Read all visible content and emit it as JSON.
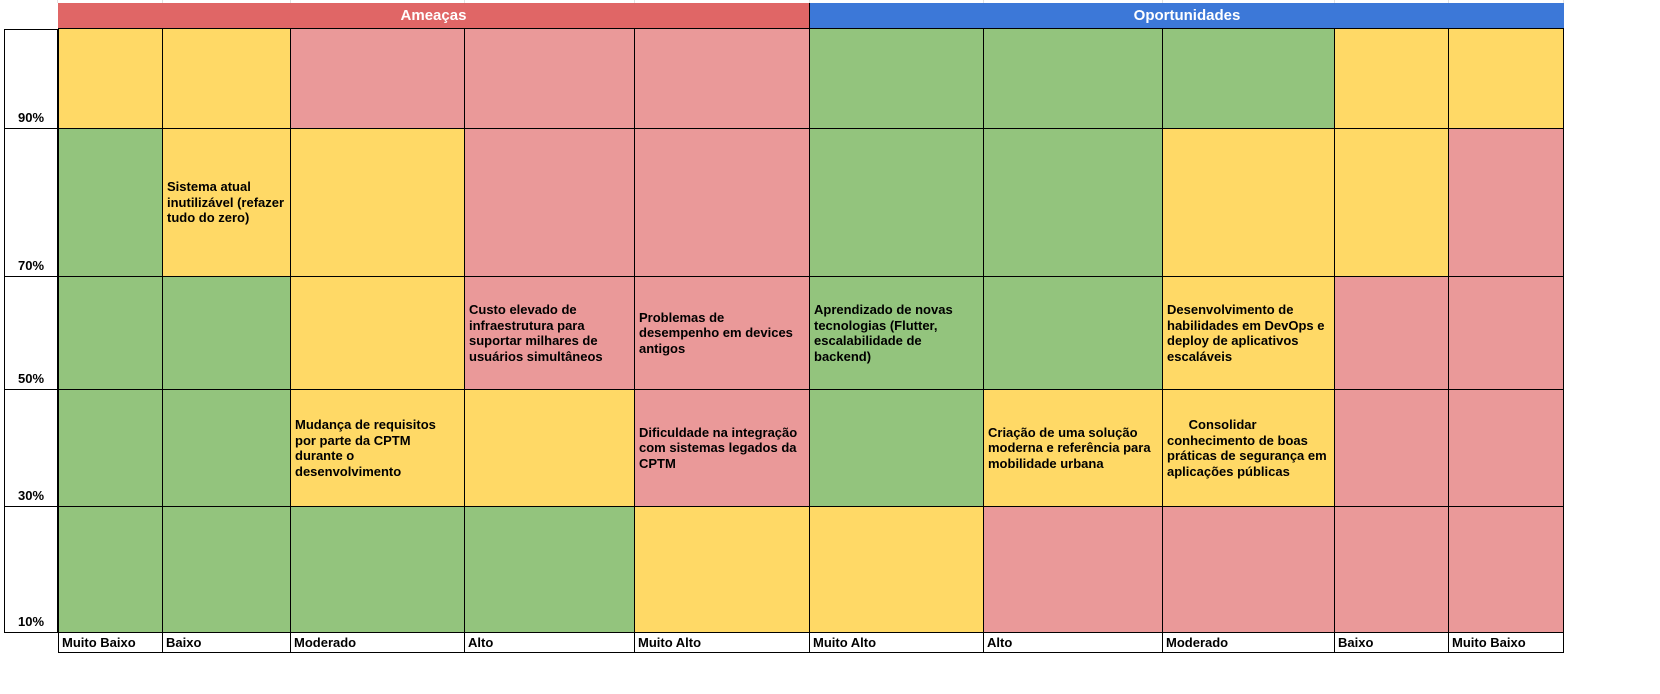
{
  "colors": {
    "threat_header": "#e06666",
    "opportunity_header": "#3c78d8",
    "green": "#93c47d",
    "yellow": "#ffd966",
    "red": "#ea9999"
  },
  "headers": {
    "threats": "Ameaças",
    "opportunities": "Oportunidades"
  },
  "probabilities": [
    "90%",
    "70%",
    "50%",
    "30%",
    "10%"
  ],
  "impact_labels": [
    "Muito Baixo",
    "Baixo",
    "Moderado",
    "Alto",
    "Muito Alto",
    "Muito Alto",
    "Alto",
    "Moderado",
    "Baixo",
    "Muito Baixo"
  ],
  "grid": [
    [
      "Y",
      "Y",
      "R",
      "R",
      "R",
      "G",
      "G",
      "G",
      "Y",
      "Y"
    ],
    [
      "G",
      "Y",
      "Y",
      "R",
      "R",
      "G",
      "G",
      "Y",
      "Y",
      "R"
    ],
    [
      "G",
      "G",
      "Y",
      "R",
      "R",
      "G",
      "G",
      "Y",
      "R",
      "R"
    ],
    [
      "G",
      "G",
      "Y",
      "Y",
      "R",
      "G",
      "Y",
      "Y",
      "R",
      "R"
    ],
    [
      "G",
      "G",
      "G",
      "G",
      "Y",
      "Y",
      "R",
      "R",
      "R",
      "R"
    ]
  ],
  "cells": {
    "r1c1": "Sistema atual inutilizável (refazer tudo do zero)",
    "r2c3": "Custo elevado de infraestrutura para suportar milhares de usuários simultâneos",
    "r2c4": "Problemas de desempenho em devices antigos",
    "r2c5": "Aprendizado de novas tecnologias (Flutter, escalabilidade de backend)",
    "r2c7": "Desenvolvimento de habilidades em DevOps e deploy de aplicativos escaláveis",
    "r3c2": "Mudança de requisitos por parte da CPTM durante o desenvolvimento",
    "r3c4": "Dificuldade na integração com sistemas legados da CPTM",
    "r3c6": "Criação de uma solução moderna e referência para mobilidade urbana",
    "r3c7": "      Consolidar conhecimento de boas práticas de segurança em aplicações públicas"
  }
}
